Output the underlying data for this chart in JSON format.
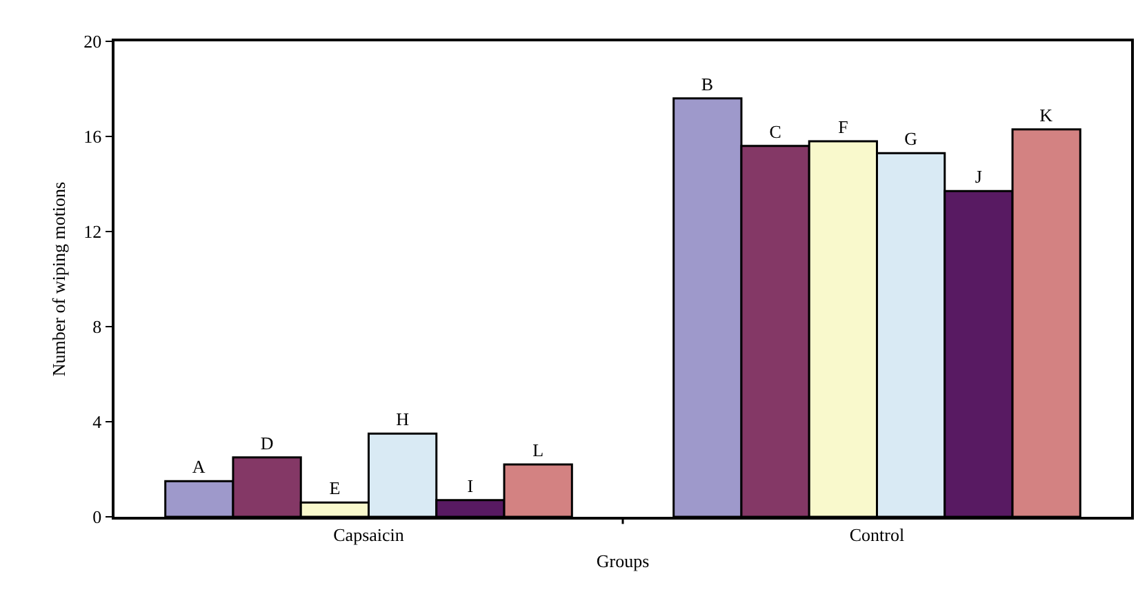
{
  "chart_data": {
    "type": "bar",
    "xlabel": "Groups",
    "ylabel": "Number of wiping motions",
    "categories": [
      "Capsaicin",
      "Control"
    ],
    "series": [
      {
        "color": "#9e99cb",
        "values": [
          1.5,
          17.6
        ],
        "value_labels": [
          "A",
          "B"
        ]
      },
      {
        "color": "#843866",
        "values": [
          2.5,
          15.6
        ],
        "value_labels": [
          "D",
          "C"
        ]
      },
      {
        "color": "#f9f9cc",
        "values": [
          0.6,
          15.8
        ],
        "value_labels": [
          "E",
          "F"
        ]
      },
      {
        "color": "#d9eaf4",
        "values": [
          3.5,
          15.3
        ],
        "value_labels": [
          "H",
          "G"
        ]
      },
      {
        "color": "#581a62",
        "values": [
          0.7,
          13.7
        ],
        "value_labels": [
          "I",
          "J"
        ]
      },
      {
        "color": "#d38282",
        "values": [
          2.2,
          16.3
        ],
        "value_labels": [
          "L",
          "K"
        ]
      }
    ],
    "ylim": [
      0,
      20
    ],
    "yticks": [
      0,
      4,
      8,
      12,
      16,
      20
    ],
    "grid": false
  }
}
